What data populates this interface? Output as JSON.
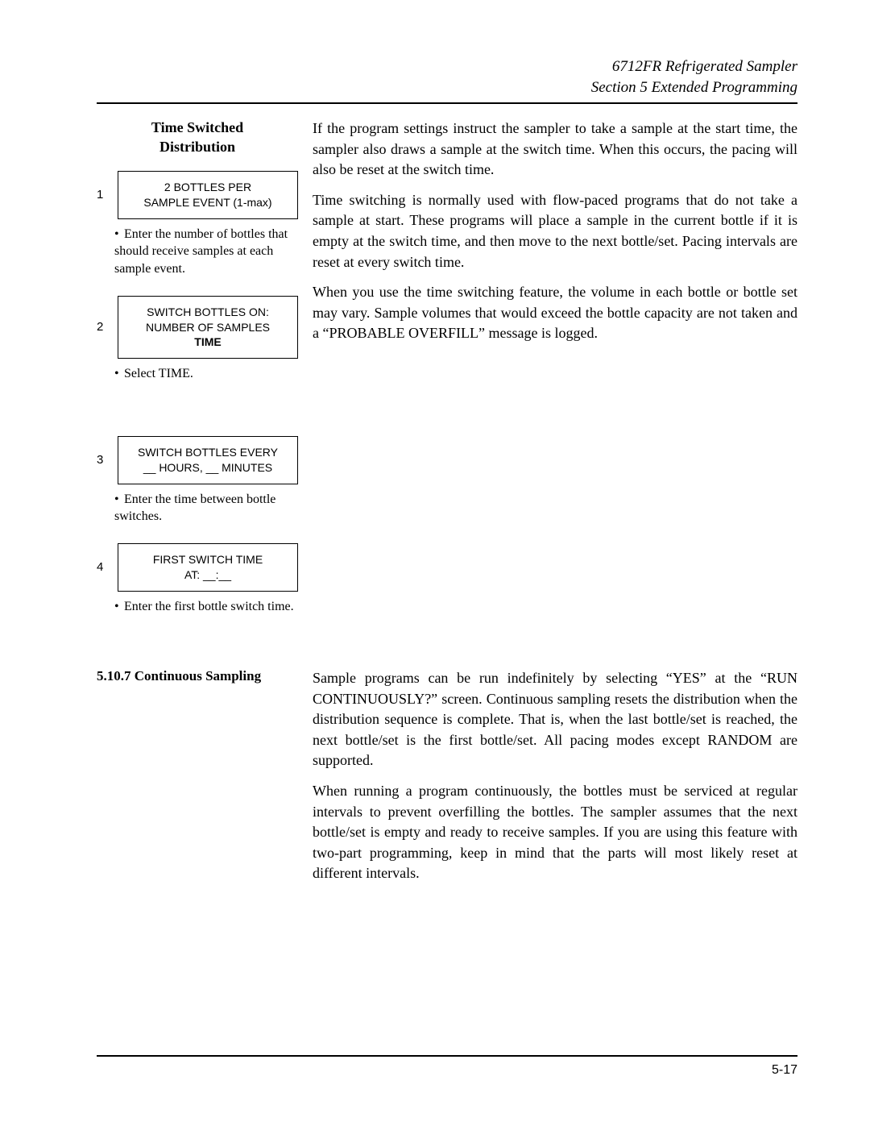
{
  "header": {
    "line1": "6712FR Refrigerated Sampler",
    "line2": "Section 5  Extended Programming"
  },
  "left": {
    "heading_l1": "Time Switched",
    "heading_l2": "Distribution",
    "steps": [
      {
        "num": "1",
        "box_l1": "2 BOTTLES PER",
        "box_l2": "SAMPLE EVENT (1-max)",
        "box_bold": "",
        "caption": "Enter the number of bottles that should receive samples at each sample event."
      },
      {
        "num": "2",
        "box_l1": "SWITCH BOTTLES ON:",
        "box_l2": "NUMBER OF SAMPLES",
        "box_bold": "TIME",
        "caption": "Select TIME."
      },
      {
        "num": "3",
        "box_l1": "SWITCH BOTTLES EVERY",
        "box_l2": "__ HOURS, __ MINUTES",
        "box_bold": "",
        "caption": "Enter the time between bottle switches."
      },
      {
        "num": "4",
        "box_l1": "FIRST SWITCH TIME",
        "box_l2": "AT: __:__",
        "box_bold": "",
        "caption": "Enter the first bottle switch time."
      }
    ]
  },
  "right": {
    "p1": "If the program settings instruct the sampler to take a sample at the start time, the sampler also draws a sample at the switch time. When this occurs, the pacing will also be reset at the switch time.",
    "p2": "Time switching is normally used with flow-paced programs that do not take a sample at start. These programs will place a sample in the current bottle if it is empty at the switch time, and then move to the next bottle/set. Pacing intervals are reset at every switch time.",
    "p3": "When you use the time switching feature, the volume in each bottle or bottle set may vary. Sample volumes that would exceed the bottle capacity are not taken and a “PROBABLE OVERFILL” message is logged."
  },
  "section2": {
    "label": "5.10.7  Continuous Sampling",
    "p1": "Sample programs can be run indefinitely by selecting “YES” at the “RUN CONTINUOUSLY?” screen. Continuous sampling resets the distribution when the distribution sequence is complete. That is, when the last bottle/set is reached, the next bottle/set is the first bottle/set. All pacing modes except RANDOM are supported.",
    "p2": "When running a program continuously, the bottles must be serviced at regular intervals to prevent overfilling the bottles. The sampler assumes that the next bottle/set is empty and ready to receive samples. If you are using this feature with two-part programming, keep in mind that the parts will most likely reset at different intervals."
  },
  "footer": {
    "page": "5-17"
  }
}
